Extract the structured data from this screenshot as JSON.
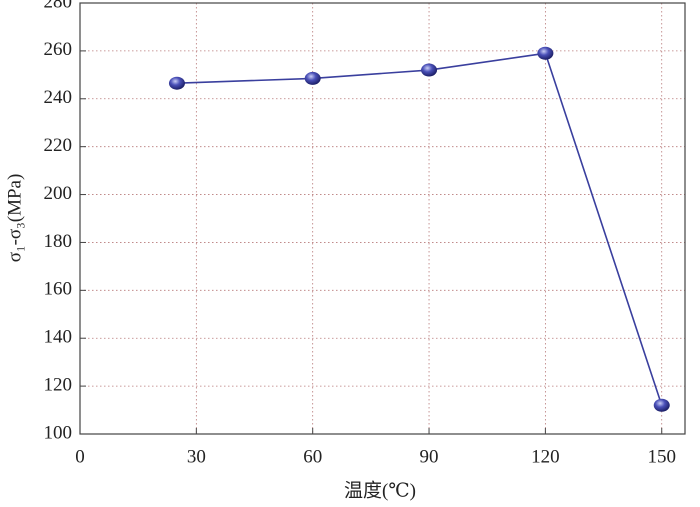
{
  "chart_data": {
    "type": "line",
    "x_label": "温度(℃)",
    "y_label": "σ₁-σ₃(MPa)",
    "x": [
      25,
      60,
      90,
      120,
      150
    ],
    "series": [
      {
        "color": "#3a3f9e",
        "values": [
          246.5,
          248.5,
          252,
          259,
          112
        ]
      }
    ],
    "xlim": [
      0,
      156
    ],
    "xticks": [
      0,
      30,
      60,
      90,
      120,
      150
    ],
    "ylim": [
      100,
      280
    ],
    "yticks": [
      100,
      120,
      140,
      160,
      180,
      200,
      220,
      240,
      260,
      280
    ],
    "grid": true
  }
}
